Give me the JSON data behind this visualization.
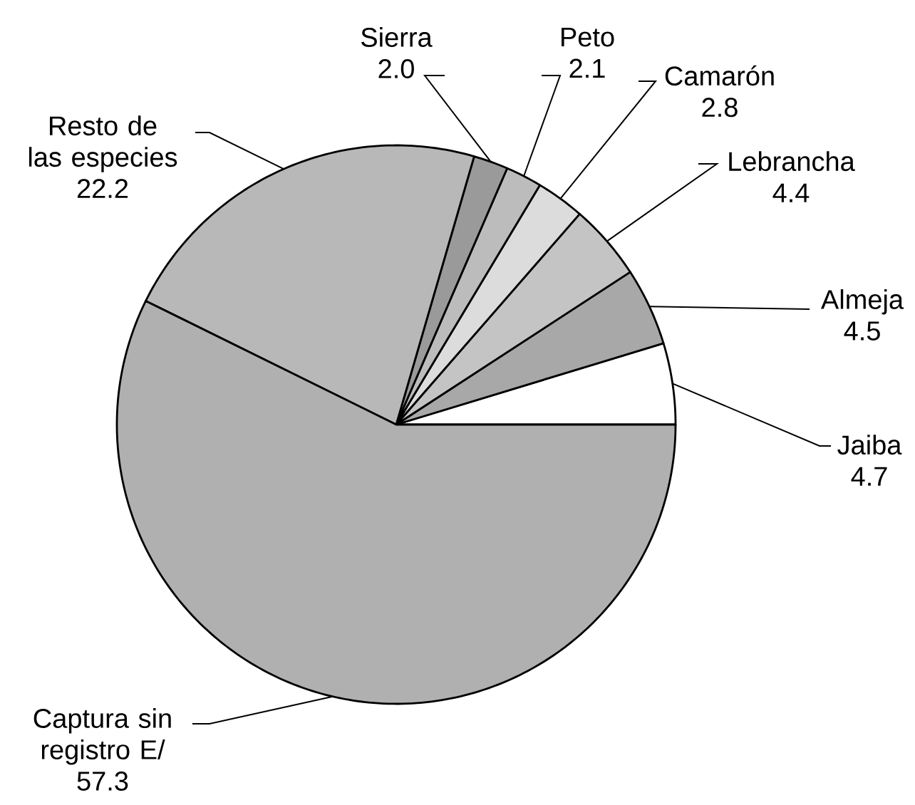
{
  "chart_data": {
    "type": "pie",
    "categories": [
      "Jaiba",
      "Almeja",
      "Lebrancha",
      "Camarón",
      "Peto",
      "Sierra",
      "Resto de las especies",
      "Captura sin registro E/"
    ],
    "values": [
      4.7,
      4.5,
      4.4,
      2.8,
      2.1,
      2.0,
      22.2,
      57.3
    ],
    "colors": [
      "#ffffff",
      "#a8a8a8",
      "#c4c4c4",
      "#dcdcdc",
      "#bcbcbc",
      "#9a9a9a",
      "#b8b8b8",
      "#b0b0b0"
    ],
    "value_labels": [
      "4.7",
      "4.5",
      "4.4",
      "2.8",
      "2.1",
      "2.0",
      "22.2",
      "57.3"
    ]
  }
}
